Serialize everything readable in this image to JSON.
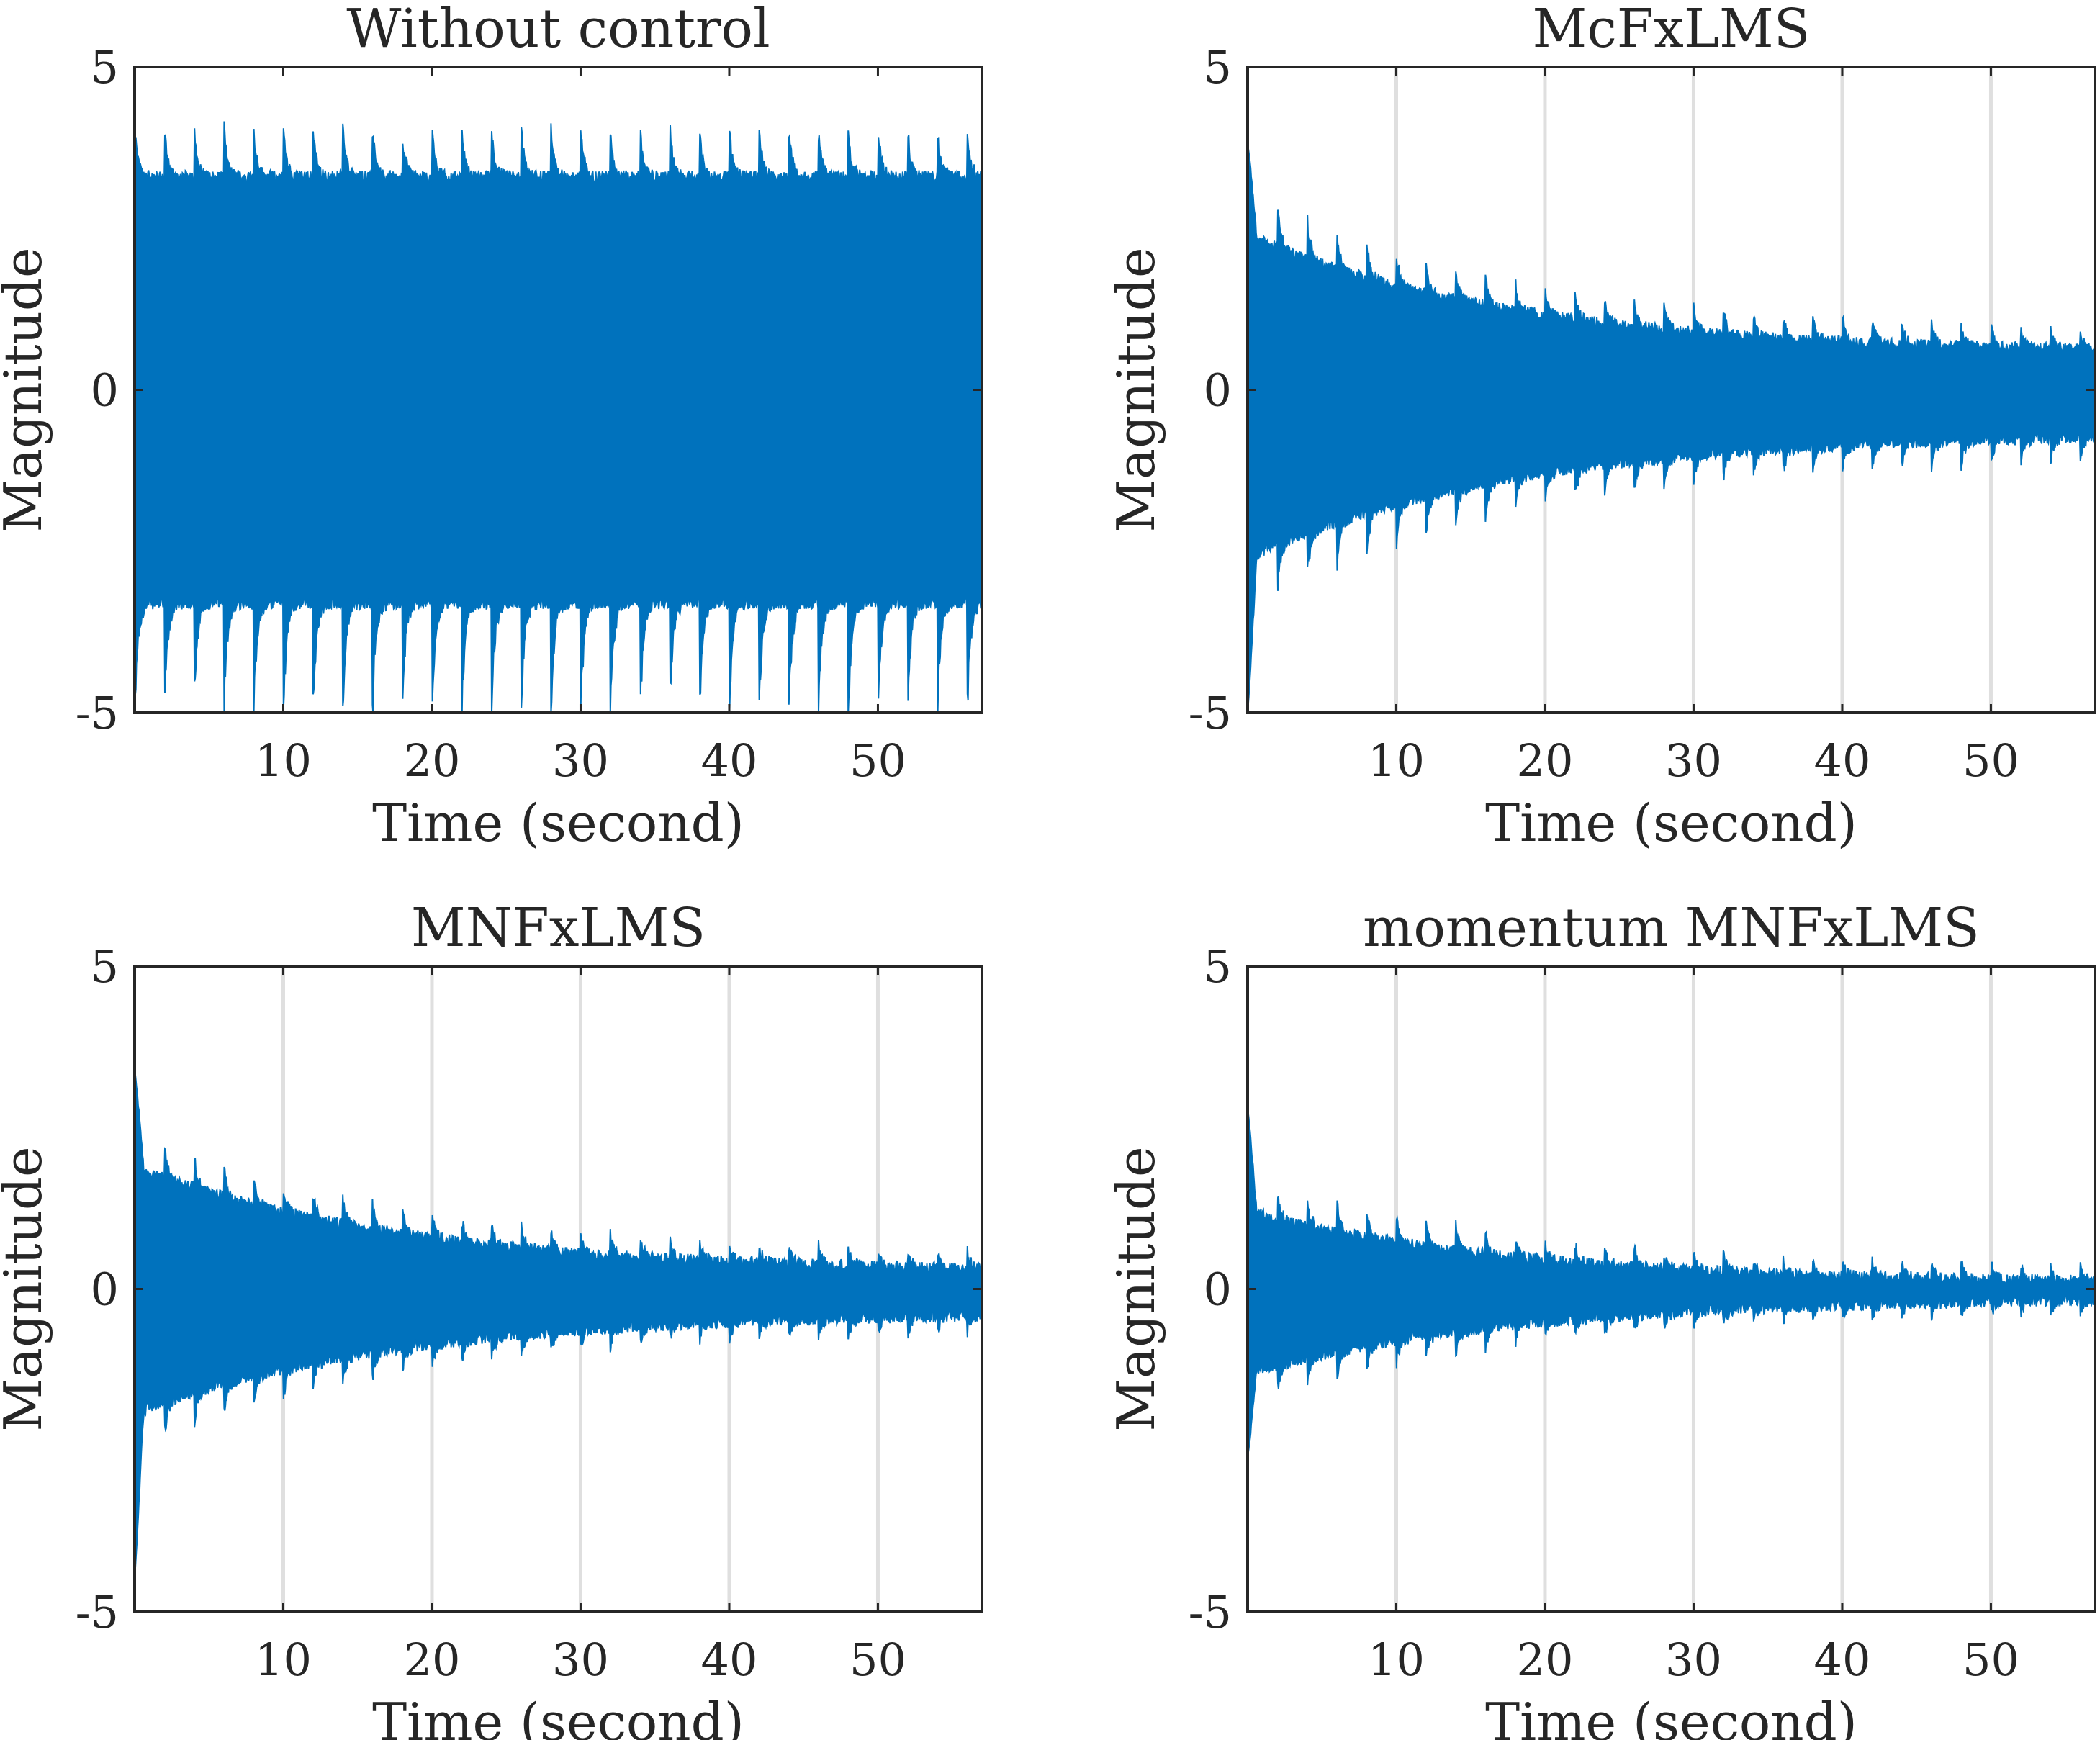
{
  "figure": {
    "signal_color": "#0072BD",
    "grid_color": "#dfdfdf",
    "axes_color": "#262626"
  },
  "chart_data": [
    {
      "type": "area",
      "id": "without-control",
      "title": "Without control",
      "xlabel": "Time (second)",
      "ylabel": "Magnitude",
      "xlim": [
        0,
        57
      ],
      "ylim": [
        -5,
        5
      ],
      "xticks": [
        10,
        20,
        30,
        40,
        50
      ],
      "xtick_labels": [
        "10",
        "20",
        "30",
        "40",
        "50"
      ],
      "yticks": [
        -5,
        0,
        5
      ],
      "ytick_labels": [
        "-5",
        "0",
        "5"
      ],
      "grid_x": false,
      "envelope": {
        "upper_start": 3.3,
        "upper_end": 3.3,
        "lower_start": -3.3,
        "lower_end": -3.3,
        "spike_up": 0.8,
        "spike_down": 1.8,
        "spike_period_s": 2.0
      }
    },
    {
      "type": "area",
      "id": "mcfxlms",
      "title": "McFxLMS",
      "xlabel": "Time (second)",
      "ylabel": "Magnitude",
      "xlim": [
        0,
        57
      ],
      "ylim": [
        -5,
        5
      ],
      "xticks": [
        10,
        20,
        30,
        40,
        50
      ],
      "xtick_labels": [
        "10",
        "20",
        "30",
        "40",
        "50"
      ],
      "yticks": [
        -5,
        0,
        5
      ],
      "ytick_labels": [
        "-5",
        "0",
        "5"
      ],
      "grid_x": true,
      "envelope": {
        "upper_start": 2.4,
        "upper_end": 0.55,
        "lower_start": -2.6,
        "lower_end": -0.65,
        "spike_up": 0.75,
        "spike_down": 0.85,
        "spike_period_s": 2.0,
        "initial_peak": 3.8,
        "initial_trough": -5.0
      }
    },
    {
      "type": "area",
      "id": "mnfxlms",
      "title": "MNFxLMS",
      "xlabel": "Time (second)",
      "ylabel": "Magnitude",
      "xlim": [
        0,
        57
      ],
      "ylim": [
        -5,
        5
      ],
      "xticks": [
        10,
        20,
        30,
        40,
        50
      ],
      "xtick_labels": [
        "10",
        "20",
        "30",
        "40",
        "50"
      ],
      "yticks": [
        -5,
        0,
        5
      ],
      "ytick_labels": [
        "-5",
        "0",
        "5"
      ],
      "grid_x": true,
      "envelope": {
        "upper_start": 1.9,
        "upper_end": 0.25,
        "lower_start": -1.9,
        "lower_end": -0.35,
        "spike_up": 0.6,
        "spike_down": 0.6,
        "spike_period_s": 2.0,
        "initial_peak": 3.4,
        "initial_trough": -4.5
      }
    },
    {
      "type": "area",
      "id": "momentum-mnfxlms",
      "title": "momentum MNFxLMS",
      "xlabel": "Time (second)",
      "ylabel": "Magnitude",
      "xlim": [
        0,
        57
      ],
      "ylim": [
        -5,
        5
      ],
      "xticks": [
        10,
        20,
        30,
        40,
        50
      ],
      "xtick_labels": [
        "10",
        "20",
        "30",
        "40",
        "50"
      ],
      "yticks": [
        -5,
        0,
        5
      ],
      "ytick_labels": [
        "-5",
        "0",
        "5"
      ],
      "grid_x": true,
      "envelope": {
        "upper_start": 1.2,
        "upper_end": 0.08,
        "lower_start": -1.3,
        "lower_end": -0.12,
        "spike_up": 0.55,
        "spike_down": 0.5,
        "spike_period_s": 2.0,
        "initial_peak": 2.8,
        "initial_trough": -2.6
      }
    }
  ]
}
